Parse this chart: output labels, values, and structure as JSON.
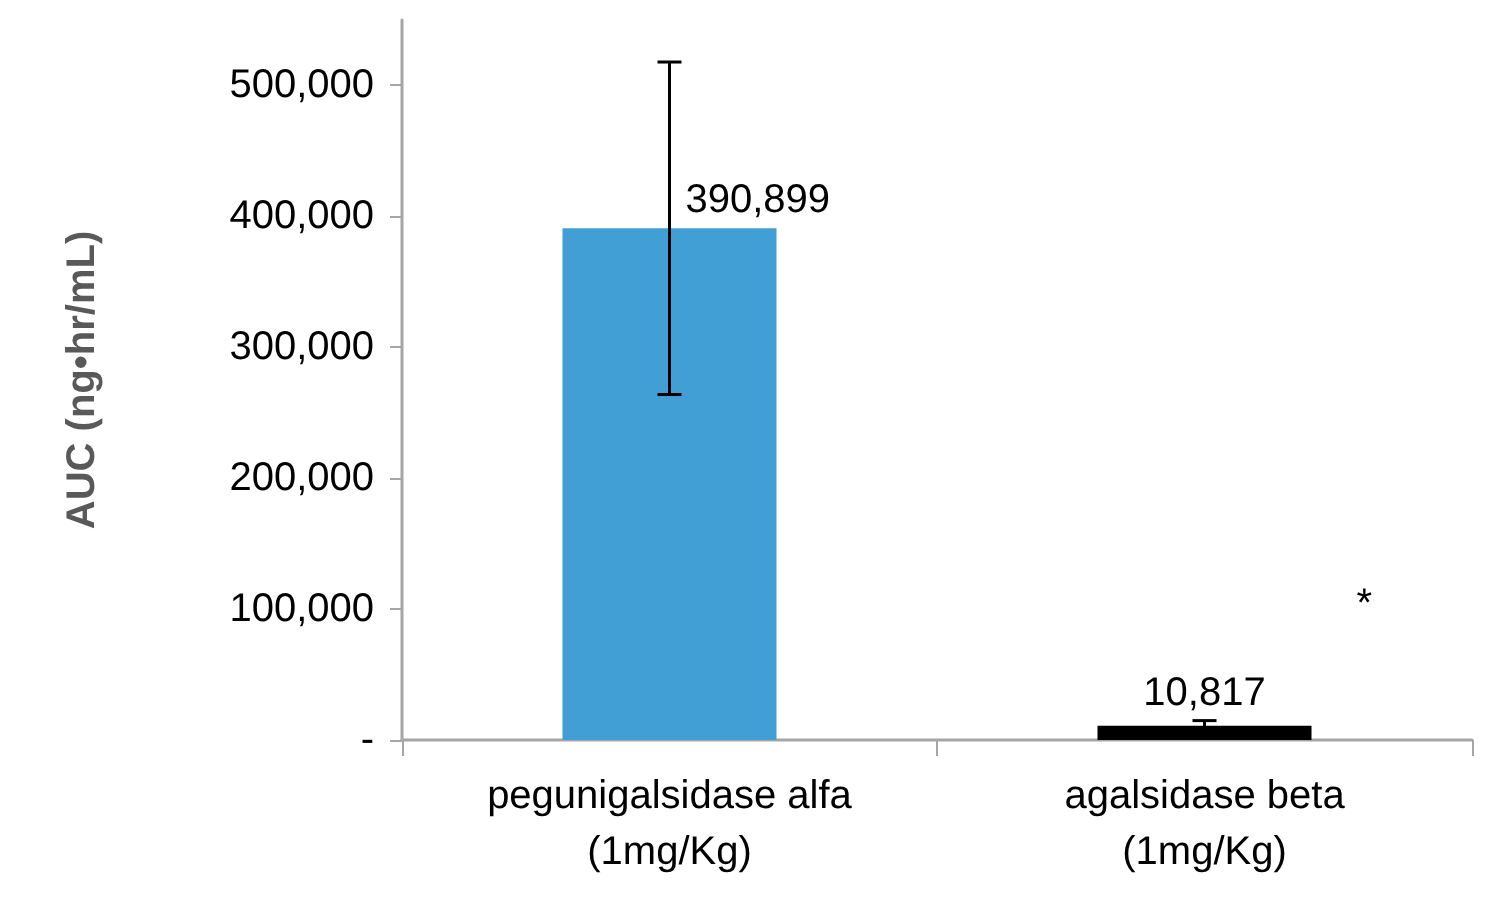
{
  "chart_data": {
    "type": "bar",
    "ylabel": "AUC (ng•hr/mL)",
    "categories": [
      "pegunigalsidase alfa\n(1mg/Kg)",
      "agalsidase beta\n(1mg/Kg)"
    ],
    "values": [
      390899,
      10817
    ],
    "colors": [
      "#429fd6",
      "#000000"
    ],
    "errors": [
      127000,
      4000
    ],
    "value_labels": [
      "390,899",
      "10,817"
    ],
    "ylim": [
      0,
      550000
    ],
    "yticks": [
      {
        "value": 0,
        "label": "-"
      },
      {
        "value": 100000,
        "label": "100,000"
      },
      {
        "value": 200000,
        "label": "200,000"
      },
      {
        "value": 300000,
        "label": "300,000"
      },
      {
        "value": 400000,
        "label": "400,000"
      },
      {
        "value": 500000,
        "label": "500,000"
      }
    ],
    "grid": false,
    "annotations": [
      "*"
    ]
  }
}
